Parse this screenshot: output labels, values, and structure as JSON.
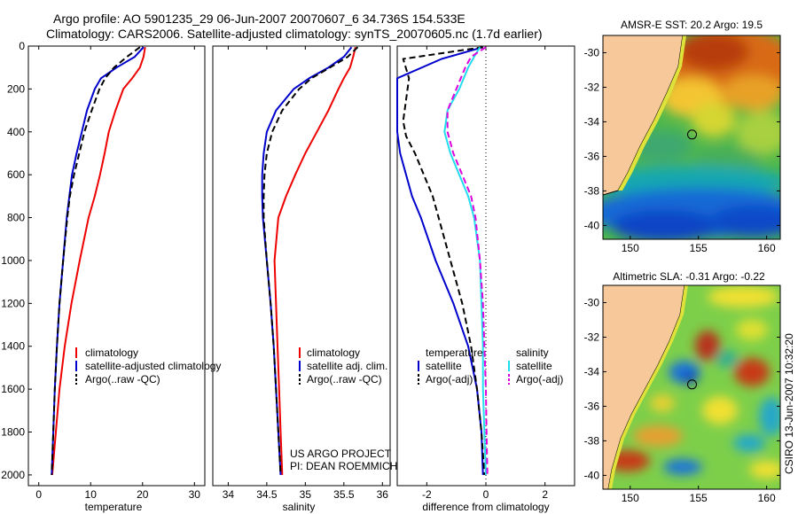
{
  "figure": {
    "title_line1": "Argo profile: AO 5901235_29 06-Jun-2007 20070607_6 34.736S 154.533E",
    "title_line2": "Climatology: CARS2006. Satellite-adjusted climatology: synTS_20070605.nc (1.7d earlier)",
    "footer_credit": "CSIRO 13-Jun-2007 10:32:20",
    "project_line1": "US ARGO PROJECT",
    "project_line2": "PI: DEAN ROEMMICH"
  },
  "colors": {
    "climatology": "#ee0000",
    "satellite": "#0000cc",
    "argo": "#000000",
    "sal_satellite": "#22dded",
    "sal_argo": "#dd00dd",
    "land": "#f7c99a"
  },
  "chart_data": [
    {
      "type": "line",
      "xlabel": "temperature",
      "ylabel": "",
      "xlim": [
        -2,
        32
      ],
      "ylim": [
        2050,
        0
      ],
      "x_ticks": [
        0,
        10,
        20,
        30
      ],
      "y_ticks": [
        0,
        200,
        400,
        600,
        800,
        1000,
        1200,
        1400,
        1600,
        1800,
        2000
      ],
      "legend": [
        "climatology",
        "satellite-adjusted climatology",
        "Argo(..raw -QC)"
      ],
      "series": [
        {
          "name": "climatology",
          "color_key": "climatology",
          "style": "solid",
          "points": [
            [
              20.5,
              5
            ],
            [
              20.2,
              50
            ],
            [
              19.5,
              100
            ],
            [
              18.0,
              150
            ],
            [
              16.3,
              200
            ],
            [
              14.8,
              300
            ],
            [
              13.5,
              400
            ],
            [
              12.7,
              500
            ],
            [
              11.8,
              600
            ],
            [
              10.8,
              700
            ],
            [
              9.6,
              800
            ],
            [
              7.9,
              1000
            ],
            [
              6.3,
              1200
            ],
            [
              5.0,
              1400
            ],
            [
              4.0,
              1600
            ],
            [
              3.3,
              1800
            ],
            [
              2.6,
              2000
            ]
          ]
        },
        {
          "name": "satellite-adjusted climatology",
          "color_key": "satellite",
          "style": "solid",
          "points": [
            [
              20.2,
              5
            ],
            [
              18.5,
              50
            ],
            [
              15.0,
              100
            ],
            [
              12.0,
              150
            ],
            [
              10.8,
              200
            ],
            [
              9.3,
              300
            ],
            [
              8.3,
              400
            ],
            [
              7.3,
              500
            ],
            [
              6.4,
              600
            ],
            [
              5.9,
              700
            ],
            [
              5.4,
              800
            ],
            [
              4.7,
              1000
            ],
            [
              4.0,
              1200
            ],
            [
              3.5,
              1400
            ],
            [
              3.1,
              1600
            ],
            [
              2.8,
              1800
            ],
            [
              2.5,
              2000
            ]
          ]
        },
        {
          "name": "Argo(..raw -QC)",
          "color_key": "argo",
          "style": "dashed",
          "points": [
            [
              19.5,
              5
            ],
            [
              17.0,
              50
            ],
            [
              14.5,
              100
            ],
            [
              12.8,
              150
            ],
            [
              11.7,
              200
            ],
            [
              10.2,
              300
            ],
            [
              8.8,
              400
            ],
            [
              7.8,
              500
            ],
            [
              6.8,
              600
            ],
            [
              6.0,
              700
            ],
            [
              5.5,
              800
            ],
            [
              4.7,
              1000
            ],
            [
              4.0,
              1200
            ],
            [
              3.5,
              1400
            ],
            [
              3.1,
              1600
            ],
            [
              2.8,
              1800
            ],
            [
              2.5,
              2000
            ]
          ]
        }
      ]
    },
    {
      "type": "line",
      "xlabel": "salinity",
      "xlim": [
        33.8,
        36.1
      ],
      "ylim": [
        2050,
        0
      ],
      "x_ticks": [
        34,
        34.5,
        35,
        35.5,
        36
      ],
      "legend": [
        "climatology",
        "satellite adj. clim.",
        "Argo(..raw -QC)"
      ],
      "series": [
        {
          "name": "climatology",
          "color_key": "climatology",
          "style": "solid",
          "points": [
            [
              35.65,
              5
            ],
            [
              35.62,
              50
            ],
            [
              35.58,
              100
            ],
            [
              35.5,
              150
            ],
            [
              35.43,
              200
            ],
            [
              35.3,
              300
            ],
            [
              35.15,
              400
            ],
            [
              35.0,
              500
            ],
            [
              34.87,
              600
            ],
            [
              34.75,
              700
            ],
            [
              34.65,
              800
            ],
            [
              34.6,
              1000
            ],
            [
              34.62,
              1200
            ],
            [
              34.64,
              1400
            ],
            [
              34.66,
              1600
            ],
            [
              34.68,
              1800
            ],
            [
              34.7,
              2000
            ]
          ]
        },
        {
          "name": "satellite adj. clim.",
          "color_key": "satellite",
          "style": "solid",
          "points": [
            [
              35.6,
              5
            ],
            [
              35.5,
              50
            ],
            [
              35.3,
              100
            ],
            [
              35.05,
              150
            ],
            [
              34.85,
              200
            ],
            [
              34.62,
              300
            ],
            [
              34.5,
              400
            ],
            [
              34.46,
              500
            ],
            [
              34.44,
              600
            ],
            [
              34.44,
              700
            ],
            [
              34.45,
              800
            ],
            [
              34.5,
              1000
            ],
            [
              34.55,
              1200
            ],
            [
              34.59,
              1400
            ],
            [
              34.62,
              1600
            ],
            [
              34.65,
              1800
            ],
            [
              34.68,
              2000
            ]
          ]
        },
        {
          "name": "Argo(..raw -QC)",
          "color_key": "argo",
          "style": "dashed",
          "points": [
            [
              35.68,
              5
            ],
            [
              35.55,
              50
            ],
            [
              35.32,
              100
            ],
            [
              35.08,
              150
            ],
            [
              34.92,
              200
            ],
            [
              34.7,
              300
            ],
            [
              34.57,
              400
            ],
            [
              34.5,
              500
            ],
            [
              34.47,
              600
            ],
            [
              34.46,
              700
            ],
            [
              34.46,
              800
            ],
            [
              34.5,
              1000
            ],
            [
              34.55,
              1200
            ],
            [
              34.59,
              1400
            ],
            [
              34.62,
              1600
            ],
            [
              34.65,
              1800
            ],
            [
              34.68,
              2000
            ]
          ]
        }
      ]
    },
    {
      "type": "line",
      "xlabel": "difference from climatology",
      "xlim": [
        -3.0,
        3.0
      ],
      "ylim": [
        2050,
        0
      ],
      "x_ticks": [
        -2,
        0,
        2
      ],
      "zero_line": true,
      "legend": [
        "temperature",
        "satellite",
        "Argo(-adj)",
        "salinity",
        "satellite",
        "Argo(-adj)"
      ],
      "series": [
        {
          "name": "temperature satellite",
          "color_key": "satellite",
          "style": "solid",
          "points": [
            [
              -0.1,
              5
            ],
            [
              -1.5,
              60
            ],
            [
              -3.0,
              150
            ],
            [
              -3.0,
              200
            ],
            [
              -3.0,
              300
            ],
            [
              -3.0,
              400
            ],
            [
              -2.9,
              500
            ],
            [
              -2.7,
              600
            ],
            [
              -2.5,
              700
            ],
            [
              -2.2,
              800
            ],
            [
              -1.7,
              1000
            ],
            [
              -1.1,
              1200
            ],
            [
              -0.6,
              1400
            ],
            [
              -0.3,
              1600
            ],
            [
              -0.15,
              1800
            ],
            [
              -0.1,
              2000
            ]
          ]
        },
        {
          "name": "temperature Argo(-adj)",
          "color_key": "argo",
          "style": "dashed",
          "points": [
            [
              -0.1,
              5
            ],
            [
              -2.8,
              60
            ],
            [
              -2.6,
              150
            ],
            [
              -2.7,
              250
            ],
            [
              -2.8,
              350
            ],
            [
              -2.7,
              420
            ],
            [
              -2.4,
              500
            ],
            [
              -2.1,
              600
            ],
            [
              -1.8,
              700
            ],
            [
              -1.6,
              800
            ],
            [
              -1.2,
              1000
            ],
            [
              -0.8,
              1200
            ],
            [
              -0.5,
              1400
            ],
            [
              -0.3,
              1600
            ],
            [
              -0.15,
              1800
            ],
            [
              -0.05,
              2000
            ]
          ]
        },
        {
          "name": "salinity satellite",
          "color_key": "sal_satellite",
          "style": "solid",
          "points": [
            [
              -0.2,
              5
            ],
            [
              -0.4,
              50
            ],
            [
              -0.6,
              100
            ],
            [
              -0.9,
              200
            ],
            [
              -1.3,
              300
            ],
            [
              -1.4,
              400
            ],
            [
              -1.2,
              500
            ],
            [
              -0.9,
              600
            ],
            [
              -0.6,
              700
            ],
            [
              -0.4,
              800
            ],
            [
              -0.2,
              1000
            ],
            [
              -0.15,
              1200
            ],
            [
              -0.1,
              1400
            ],
            [
              -0.1,
              1600
            ],
            [
              -0.05,
              1800
            ],
            [
              0.0,
              2000
            ]
          ]
        },
        {
          "name": "salinity Argo(-adj)",
          "color_key": "sal_argo",
          "style": "dashed",
          "points": [
            [
              0.0,
              5
            ],
            [
              -0.5,
              50
            ],
            [
              -0.7,
              100
            ],
            [
              -1.0,
              200
            ],
            [
              -1.3,
              300
            ],
            [
              -1.3,
              400
            ],
            [
              -1.1,
              500
            ],
            [
              -0.8,
              600
            ],
            [
              -0.5,
              700
            ],
            [
              -0.35,
              800
            ],
            [
              -0.2,
              1000
            ],
            [
              -0.1,
              1200
            ],
            [
              -0.05,
              1400
            ],
            [
              0.0,
              1600
            ],
            [
              0.02,
              1800
            ],
            [
              0.05,
              2000
            ]
          ]
        }
      ]
    },
    {
      "type": "heatmap",
      "title": "AMSR-E SST: 20.2  Argo: 19.5",
      "xlim": [
        148,
        161
      ],
      "ylim": [
        -40.8,
        -29
      ],
      "x_ticks": [
        150,
        155,
        160
      ],
      "y_ticks": [
        -30,
        -32,
        -34,
        -36,
        -38,
        -40
      ],
      "float_position": [
        154.533,
        -34.736
      ]
    },
    {
      "type": "heatmap",
      "title": "Altimetric SLA: -0.31  Argo: -0.22",
      "xlim": [
        148,
        161
      ],
      "ylim": [
        -40.8,
        -29
      ],
      "x_ticks": [
        150,
        155,
        160
      ],
      "y_ticks": [
        -30,
        -32,
        -34,
        -36,
        -38,
        -40
      ],
      "float_position": [
        154.533,
        -34.736
      ]
    }
  ]
}
